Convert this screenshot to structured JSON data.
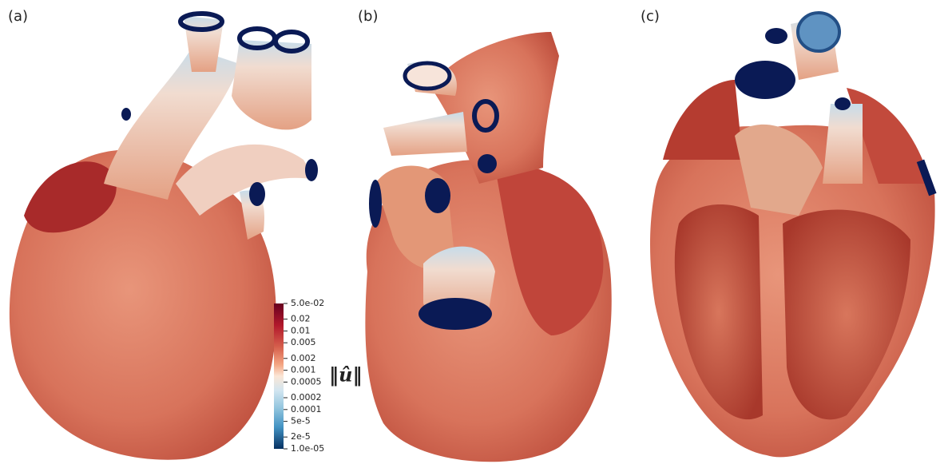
{
  "panels": [
    "(a)",
    "(b)",
    "(c)"
  ],
  "colorbar": {
    "title": "‖û‖",
    "scale": "log",
    "lim": [
      1e-05,
      0.05
    ],
    "ticks": [
      {
        "value": 0.05,
        "label": "5.0e-02"
      },
      {
        "value": 0.02,
        "label": "0.02"
      },
      {
        "value": 0.01,
        "label": "0.01"
      },
      {
        "value": 0.005,
        "label": "0.005"
      },
      {
        "value": 0.002,
        "label": "0.002"
      },
      {
        "value": 0.001,
        "label": "0.001"
      },
      {
        "value": 0.0005,
        "label": "0.0005"
      },
      {
        "value": 0.0002,
        "label": "0.0002"
      },
      {
        "value": 0.0001,
        "label": "0.0001"
      },
      {
        "value": 5e-05,
        "label": "5e-5"
      },
      {
        "value": 2e-05,
        "label": "2e-5"
      },
      {
        "value": 1e-05,
        "label": "1.0e-05"
      }
    ]
  }
}
